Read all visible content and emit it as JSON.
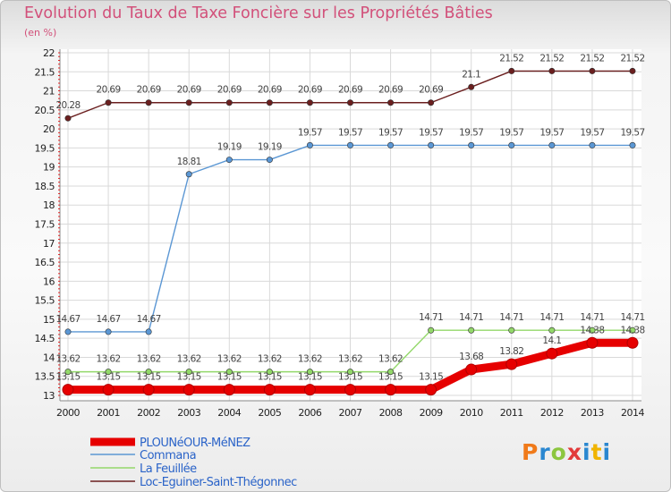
{
  "chart_data": {
    "type": "line",
    "title": "Evolution du Taux de Taxe Foncière sur les Propriétés Bâties",
    "subtitle": "(en %)",
    "x": [
      "2000",
      "2001",
      "2002",
      "2003",
      "2004",
      "2005",
      "2006",
      "2007",
      "2008",
      "2009",
      "2010",
      "2011",
      "2012",
      "2013",
      "2014"
    ],
    "ylim": [
      13,
      22
    ],
    "yticks": [
      "13",
      "13.5",
      "14",
      "14.5",
      "15",
      "15.5",
      "16",
      "16.5",
      "17",
      "17.5",
      "18",
      "18.5",
      "19",
      "19.5",
      "20",
      "20.5",
      "21",
      "21.5",
      "22"
    ],
    "series": [
      {
        "name": "Loc-Eguiner-Saint-Thégonnec",
        "color": "#6b1f1f",
        "values": [
          20.28,
          20.69,
          20.69,
          20.69,
          20.69,
          20.69,
          20.69,
          20.69,
          20.69,
          20.69,
          21.1,
          21.52,
          21.52,
          21.52,
          21.52
        ],
        "labels": [
          "20.28",
          "20.69",
          "20.69",
          "20.69",
          "20.69",
          "20.69",
          "20.69",
          "20.69",
          "20.69",
          "20.69",
          "21.1",
          "21.52",
          "21.52",
          "21.52",
          "21.52"
        ]
      },
      {
        "name": "Commana",
        "color": "#5b97d4",
        "values": [
          14.67,
          14.67,
          14.67,
          18.81,
          19.19,
          19.19,
          19.57,
          19.57,
          19.57,
          19.57,
          19.57,
          19.57,
          19.57,
          19.57,
          19.57
        ],
        "labels": [
          "14.67",
          "14.67",
          "14.67",
          "18.81",
          "19.19",
          "19.19",
          "19.57",
          "19.57",
          "19.57",
          "19.57",
          "19.57",
          "19.57",
          "19.57",
          "19.57",
          "19.57"
        ]
      },
      {
        "name": "La Feuillée",
        "color": "#93d86a",
        "values": [
          13.62,
          13.62,
          13.62,
          13.62,
          13.62,
          13.62,
          13.62,
          13.62,
          13.62,
          14.71,
          14.71,
          14.71,
          14.71,
          14.71,
          14.71
        ],
        "labels": [
          "13.62",
          "13.62",
          "13.62",
          "13.62",
          "13.62",
          "13.62",
          "13.62",
          "13.62",
          "13.62",
          "14.71",
          "14.71",
          "14.71",
          "14.71",
          "14.71",
          "14.71"
        ]
      },
      {
        "name": "PLOUNéOUR-MéNEZ",
        "color": "#e60000",
        "values": [
          13.15,
          13.15,
          13.15,
          13.15,
          13.15,
          13.15,
          13.15,
          13.15,
          13.15,
          13.15,
          13.68,
          13.82,
          14.1,
          14.38,
          14.38
        ],
        "labels": [
          "13.15",
          "13.15",
          "13.15",
          "13.15",
          "13.15",
          "13.15",
          "13.15",
          "13.15",
          "13.15",
          "13.15",
          "13.68",
          "13.82",
          "14.1",
          "14.38",
          "14.38"
        ]
      }
    ],
    "legend": [
      "PLOUNéOUR-MéNEZ",
      "Commana",
      "La Feuillée",
      "Loc-Eguiner-Saint-Thégonnec"
    ],
    "legend_colors": [
      "#e60000",
      "#5b97d4",
      "#93d86a",
      "#6b1f1f"
    ],
    "grid": true
  },
  "logo": {
    "p": "P",
    "r": "r",
    "o": "o",
    "x": "x",
    "i": "i",
    "t": "t",
    "i2": "i"
  }
}
